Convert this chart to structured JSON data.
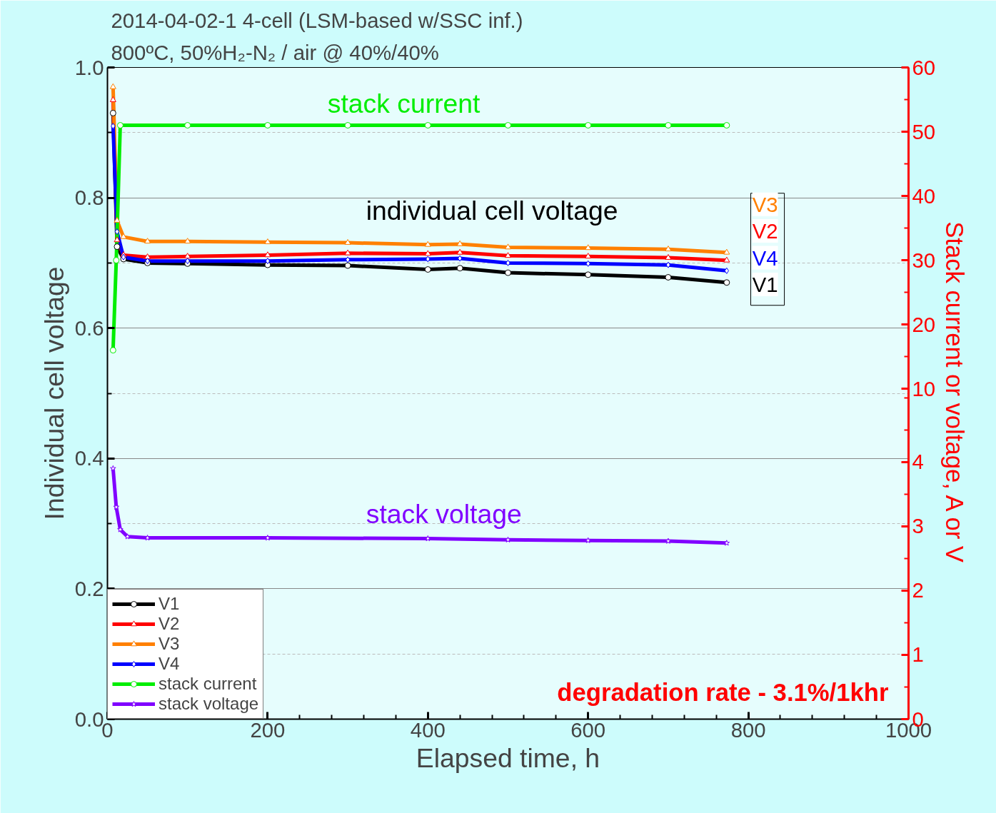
{
  "chart_data": {
    "type": "line",
    "title": "2014-04-02-1 4-cell (LSM-based w/SSC inf.)",
    "subtitle": "800ºC, 50%H₂-N₂ / air @ 40%/40%",
    "xlabel": "Elapsed time, h",
    "ylabel": "Individual cell voltage",
    "y2label": "Stack current or voltage, A or V",
    "xlim": [
      0,
      1000
    ],
    "xticks": [
      0,
      200,
      400,
      600,
      800,
      1000
    ],
    "ylim": [
      0,
      1.0
    ],
    "yticks": [
      {
        "value": 0,
        "label": "0.0"
      },
      0.2,
      0.4,
      0.6,
      0.8,
      {
        "value": 1.0,
        "label": "1.0"
      }
    ],
    "y2lim": [
      0,
      10.14
    ],
    "y2ticks": [
      0,
      1,
      2,
      3,
      4
    ],
    "y3lim": [
      -41.4,
      60
    ],
    "y3ticks": [
      10,
      20,
      30,
      40,
      50,
      60
    ],
    "grid": true,
    "legend": "bottom left",
    "line_style": "solid",
    "series": [
      {
        "name": "V1",
        "color": "#000000",
        "marker": "circle",
        "x": [
          7,
          12,
          20,
          50,
          100,
          200,
          300,
          400,
          440,
          500,
          600,
          700,
          773
        ],
        "values": [
          0.93,
          0.725,
          0.706,
          0.7,
          0.699,
          0.697,
          0.696,
          0.69,
          0.692,
          0.685,
          0.682,
          0.678,
          0.67
        ]
      },
      {
        "name": "V2",
        "color": "#ff0000",
        "marker": "triangle",
        "x": [
          7,
          12,
          20,
          50,
          100,
          200,
          300,
          400,
          440,
          500,
          600,
          700,
          773
        ],
        "values": [
          0.95,
          0.735,
          0.712,
          0.709,
          0.71,
          0.712,
          0.715,
          0.714,
          0.716,
          0.711,
          0.71,
          0.708,
          0.704
        ]
      },
      {
        "name": "V3",
        "color": "#ff8000",
        "marker": "triangle",
        "x": [
          7,
          12,
          20,
          50,
          100,
          200,
          300,
          400,
          440,
          500,
          600,
          700,
          773
        ],
        "values": [
          0.97,
          0.765,
          0.74,
          0.733,
          0.733,
          0.732,
          0.731,
          0.728,
          0.729,
          0.724,
          0.723,
          0.721,
          0.716
        ]
      },
      {
        "name": "V4",
        "color": "#0000ff",
        "marker": "diamond",
        "x": [
          7,
          12,
          20,
          50,
          100,
          200,
          300,
          400,
          440,
          500,
          600,
          700,
          773
        ],
        "values": [
          0.91,
          0.748,
          0.709,
          0.703,
          0.703,
          0.703,
          0.705,
          0.706,
          0.707,
          0.7,
          0.699,
          0.697,
          0.688
        ]
      },
      {
        "name": "stack current",
        "color": "#00ee00",
        "marker": "circle",
        "axis": "y3",
        "x": [
          7,
          11,
          16,
          100,
          200,
          300,
          400,
          500,
          600,
          700,
          773
        ],
        "values": [
          16,
          30,
          51,
          51,
          51,
          51,
          51,
          51,
          51,
          51,
          51
        ]
      },
      {
        "name": "stack voltage",
        "color": "#8000ff",
        "marker": "star",
        "axis": "y2",
        "x": [
          7,
          11,
          16,
          25,
          50,
          200,
          400,
          500,
          600,
          700,
          773
        ],
        "values": [
          3.9,
          3.3,
          2.95,
          2.84,
          2.82,
          2.82,
          2.81,
          2.79,
          2.78,
          2.77,
          2.74
        ]
      }
    ],
    "annotations": [
      "stack current",
      "individual cell voltage",
      "stack voltage",
      "degradation rate - 3.1%/1khr"
    ]
  }
}
